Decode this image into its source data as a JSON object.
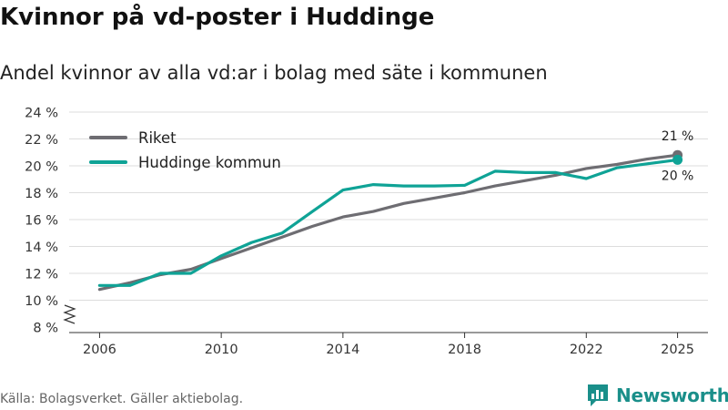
{
  "header": {
    "title": "Kvinnor på vd-poster i Huddinge",
    "subtitle": "Andel kvinnor av alla vd:ar i bolag med säte i kommunen"
  },
  "footer": {
    "source": "Källa: Bolagsverket. Gäller aktiebolag.",
    "brand": "Newsworthy"
  },
  "colors": {
    "riket": "#6e6d72",
    "huddinge": "#0fa396",
    "grid": "#dddddd",
    "axis": "#333333"
  },
  "chart_data": {
    "type": "line",
    "title": "Kvinnor på vd-poster i Huddinge",
    "xlabel": "",
    "ylabel": "",
    "ylim": [
      8,
      24
    ],
    "yticks": [
      8,
      10,
      12,
      14,
      16,
      18,
      20,
      22,
      24
    ],
    "ytick_labels": [
      "8 %",
      "10 %",
      "12 %",
      "14 %",
      "16 %",
      "18 %",
      "20 %",
      "22 %",
      "24 %"
    ],
    "xlim": [
      2005,
      2026
    ],
    "xticks": [
      2006,
      2010,
      2014,
      2018,
      2022,
      2025
    ],
    "xtick_labels": [
      "2006",
      "2010",
      "2014",
      "2018",
      "2022",
      "2025"
    ],
    "legend_position": "top-left",
    "x": [
      2006,
      2007,
      2008,
      2009,
      2010,
      2011,
      2012,
      2013,
      2014,
      2015,
      2016,
      2017,
      2018,
      2019,
      2020,
      2021,
      2022,
      2023,
      2024,
      2025
    ],
    "series": [
      {
        "name": "Riket",
        "color": "#6e6d72",
        "values": [
          10.8,
          11.3,
          11.9,
          12.3,
          13.1,
          13.9,
          14.7,
          15.5,
          16.2,
          16.6,
          17.2,
          17.6,
          18.0,
          18.5,
          18.9,
          19.3,
          19.8,
          20.1,
          20.5,
          20.8
        ],
        "end_label": "21 %"
      },
      {
        "name": "Huddinge kommun",
        "color": "#0fa396",
        "values": [
          11.1,
          11.1,
          12.0,
          12.0,
          13.3,
          14.3,
          15.0,
          16.6,
          18.2,
          18.6,
          18.5,
          18.5,
          18.55,
          19.6,
          19.5,
          19.5,
          19.05,
          19.85,
          20.15,
          20.45
        ],
        "end_label": "20 %"
      }
    ]
  }
}
